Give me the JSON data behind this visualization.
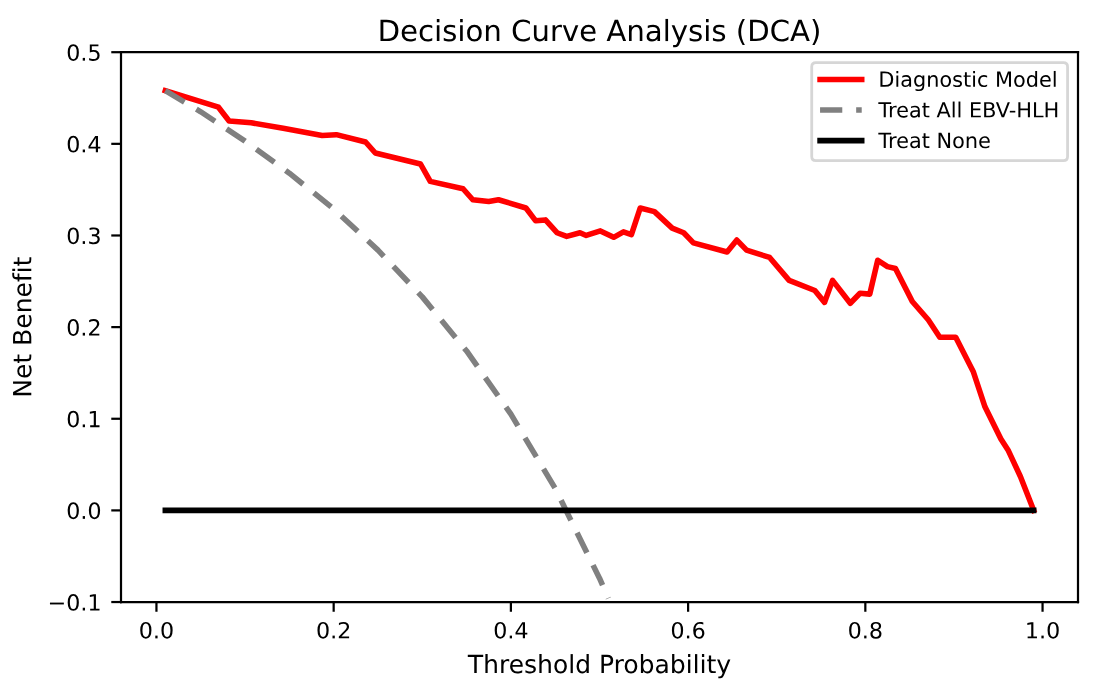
{
  "chart_data": {
    "type": "line",
    "title": "Decision Curve Analysis (DCA)",
    "xlabel": "Threshold Probability",
    "ylabel": "Net Benefit",
    "xlim": [
      -0.04,
      1.04
    ],
    "ylim": [
      -0.1,
      0.5
    ],
    "xticks": [
      {
        "value": 0,
        "label": "0.0"
      },
      {
        "value": 0.2,
        "label": "0.2"
      },
      {
        "value": 0.4,
        "label": "0.4"
      },
      {
        "value": 0.6,
        "label": "0.6"
      },
      {
        "value": 0.8,
        "label": "0.8"
      },
      {
        "value": 1,
        "label": "1.0"
      }
    ],
    "yticks": [
      {
        "value": -0.1,
        "label": "−0.1"
      },
      {
        "value": 0,
        "label": "0.0"
      },
      {
        "value": 0.1,
        "label": "0.1"
      },
      {
        "value": 0.2,
        "label": "0.2"
      },
      {
        "value": 0.3,
        "label": "0.3"
      },
      {
        "value": 0.4,
        "label": "0.4"
      },
      {
        "value": 0.5,
        "label": "0.5"
      }
    ],
    "grid": false,
    "legend": "top right",
    "series": [
      {
        "name": "Diagnostic Model",
        "color": "#ff0000",
        "line_style": "solid",
        "x": [
          0.01,
          0.07,
          0.082,
          0.107,
          0.143,
          0.187,
          0.203,
          0.236,
          0.247,
          0.298,
          0.309,
          0.346,
          0.357,
          0.375,
          0.386,
          0.417,
          0.428,
          0.439,
          0.452,
          0.463,
          0.478,
          0.485,
          0.501,
          0.516,
          0.527,
          0.536,
          0.546,
          0.562,
          0.582,
          0.595,
          0.606,
          0.644,
          0.655,
          0.666,
          0.692,
          0.714,
          0.743,
          0.754,
          0.763,
          0.783,
          0.794,
          0.805,
          0.814,
          0.825,
          0.834,
          0.853,
          0.871,
          0.884,
          0.902,
          0.922,
          0.935,
          0.953,
          0.961,
          0.975,
          0.99
        ],
        "values": [
          0.458,
          0.44,
          0.425,
          0.423,
          0.417,
          0.409,
          0.41,
          0.402,
          0.39,
          0.378,
          0.359,
          0.351,
          0.339,
          0.337,
          0.339,
          0.33,
          0.316,
          0.317,
          0.303,
          0.299,
          0.303,
          0.3,
          0.305,
          0.298,
          0.304,
          0.301,
          0.33,
          0.326,
          0.308,
          0.303,
          0.292,
          0.282,
          0.295,
          0.284,
          0.276,
          0.251,
          0.24,
          0.227,
          0.251,
          0.226,
          0.237,
          0.236,
          0.273,
          0.266,
          0.264,
          0.228,
          0.208,
          0.189,
          0.189,
          0.151,
          0.113,
          0.078,
          0.066,
          0.037,
          0.0
        ]
      },
      {
        "name": "Treat All EBV-HLH",
        "color": "#808080",
        "line_style": "dashed",
        "x": [
          0.01,
          0.05,
          0.1,
          0.15,
          0.2,
          0.25,
          0.3,
          0.35,
          0.4,
          0.45,
          0.5,
          0.51
        ],
        "values": [
          0.458,
          0.435,
          0.403,
          0.368,
          0.329,
          0.284,
          0.233,
          0.174,
          0.105,
          0.024,
          -0.074,
          -0.096
        ]
      },
      {
        "name": "Treat None",
        "color": "#000000",
        "line_style": "solid",
        "x": [
          0.01,
          0.99
        ],
        "values": [
          0,
          0
        ]
      }
    ]
  }
}
